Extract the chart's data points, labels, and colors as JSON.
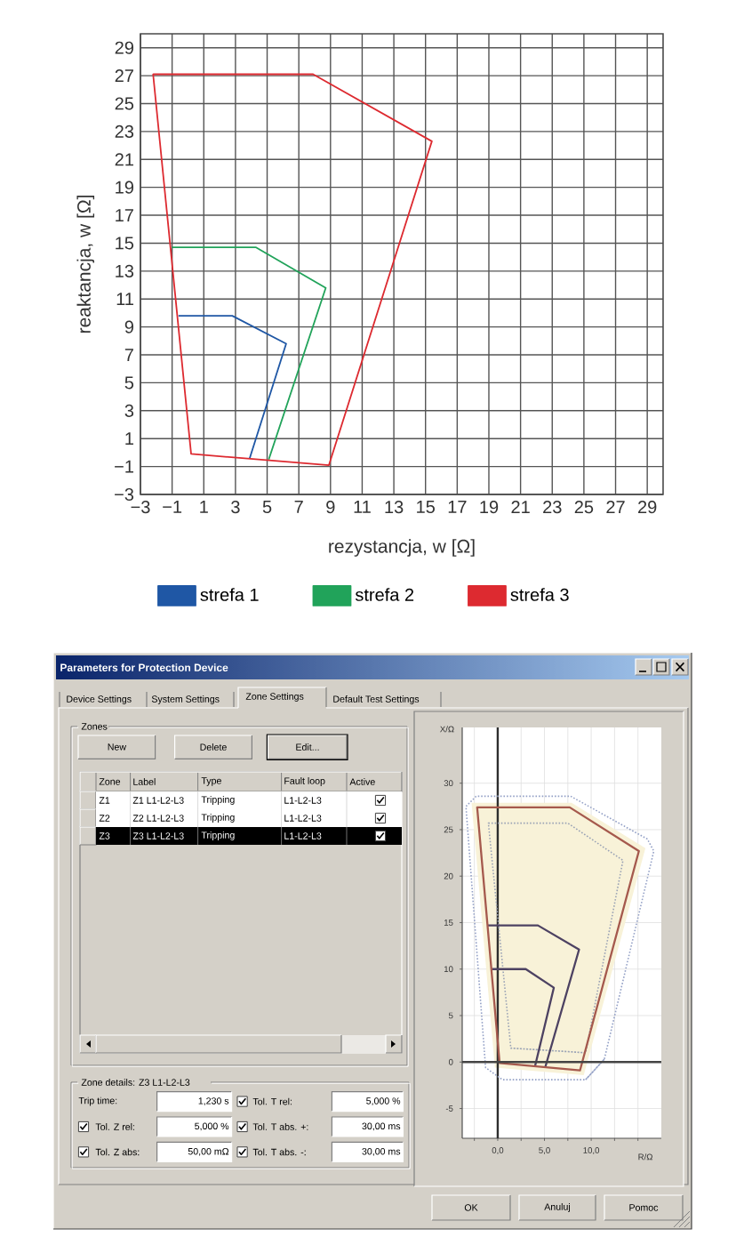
{
  "chart_data": [
    {
      "type": "line",
      "xlabel": "rezystancja, w [Ω]",
      "ylabel": "reaktancja, w [Ω]",
      "xlim": [
        -3,
        30
      ],
      "ylim": [
        -3,
        30
      ],
      "xticks": [
        {
          "value": -3,
          "label": "−3"
        },
        {
          "value": -1,
          "label": "−1"
        },
        1,
        3,
        5,
        7,
        9,
        11,
        13,
        15,
        17,
        19,
        21,
        23,
        25,
        27,
        29
      ],
      "yticks": [
        {
          "value": -3,
          "label": "−3"
        },
        {
          "value": -1,
          "label": "−1"
        },
        1,
        3,
        5,
        7,
        9,
        11,
        13,
        15,
        17,
        19,
        21,
        23,
        25,
        27,
        29
      ],
      "grid": true,
      "legend": "bottom",
      "series": [
        {
          "name": "strefa 1",
          "color": "#1f57a5",
          "x": [
            -0.6,
            2.8,
            6.2,
            3.9
          ],
          "values": [
            9.8,
            9.8,
            7.8,
            -0.4
          ]
        },
        {
          "name": "strefa 2",
          "color": "#21a35a",
          "x": [
            -1.0,
            4.3,
            8.7,
            5.1
          ],
          "values": [
            14.7,
            14.7,
            11.8,
            -0.5
          ]
        },
        {
          "name": "strefa 3",
          "color": "#dd2a30",
          "x": [
            -2.2,
            7.9,
            15.4,
            8.9,
            0.2,
            -2.2,
            7.9
          ],
          "values": [
            27.1,
            27.1,
            22.3,
            -0.9,
            -0.1,
            27.1,
            27.1
          ]
        }
      ]
    },
    {
      "type": "other",
      "title": "Parameters for Protection Device",
      "annotations": [
        "Device Settings",
        "System Settings",
        "Zone Settings",
        "Default Test Settings",
        "Zones",
        "New",
        "Delete",
        "Edit...",
        "Zone",
        "Label",
        "Type",
        "Fault loop",
        "Active",
        "Z1",
        "Z1 L1-L2-L3",
        "Tripping",
        "L1-L2-L3",
        "Z2",
        "Z2 L1-L2-L3",
        "Tripping",
        "L1-L2-L3",
        "Z3",
        "Z3 L1-L2-L3",
        "Tripping",
        "L1-L2-L3",
        "Zone details: Z3 L1-L2-L3",
        "Trip time:",
        "1,230 s",
        "Tol. T rel:",
        "5,000 %",
        "Tol. Z rel:",
        "5,000 %",
        "Tol. T abs. +:",
        "30,00 ms",
        "Tol. Z abs:",
        "50,00 mΩ",
        "Tol. T abs. -:",
        "30,00 ms",
        "OK",
        "Anuluj",
        "Pomoc"
      ]
    },
    {
      "type": "line",
      "xlabel": "R/Ω",
      "ylabel": "X/Ω",
      "xlim": [
        -3.8,
        17.5
      ],
      "ylim": [
        -8.2,
        36
      ],
      "xticks": [
        {
          "value": -2.5,
          "label": null
        },
        {
          "value": 0,
          "label": "0,0"
        },
        {
          "value": 2.5,
          "label": null
        },
        {
          "value": 5,
          "label": "5,0"
        },
        {
          "value": 7.5,
          "label": null
        },
        {
          "value": 10,
          "label": "10,0"
        },
        {
          "value": 12.5,
          "label": null
        },
        {
          "value": 15,
          "label": null
        }
      ],
      "yticks": [
        -5,
        0,
        5,
        10,
        15,
        20,
        25,
        30
      ],
      "grid": true,
      "ref_lines": [
        {
          "axis": "x",
          "value": 0,
          "color": "#2e2e2e"
        },
        {
          "axis": "y",
          "value": 0,
          "color": "#444444"
        }
      ],
      "series": [
        {
          "type": "area",
          "color": "#f8f2d8",
          "x": [
            -2.8,
            7.9,
            15.8,
            9.2,
            -0.3,
            -2.8
          ],
          "values": [
            27.9,
            27.9,
            23.0,
            -1.4,
            -0.6,
            27.9
          ]
        },
        {
          "color": "#93a0c6",
          "line_style": "dotted",
          "x": [
            11.4,
            9.4,
            0.5,
            -1.3,
            -3.4,
            -2.3,
            7.8,
            16.0,
            16.7,
            11.4,
            9.4
          ],
          "values": [
            0.3,
            -1.9,
            -1.9,
            -0.6,
            27.5,
            28.6,
            28.6,
            24.0,
            22.7,
            0.3,
            -1.9
          ]
        },
        {
          "color": "#9aa3b5",
          "line_style": "dotted",
          "x": [
            9.4,
            1.4,
            -1.0,
            7.5,
            13.4,
            9.4,
            1.4
          ],
          "values": [
            1.0,
            1.5,
            25.7,
            25.7,
            21.7,
            1.0,
            1.5
          ]
        },
        {
          "color": "#4d4262",
          "x": [
            -0.6,
            3.0,
            6.0,
            4.0
          ],
          "values": [
            10.0,
            10.0,
            8.0,
            -0.4
          ]
        },
        {
          "color": "#4d4262",
          "x": [
            -1.1,
            4.3,
            8.7,
            5.1
          ],
          "values": [
            14.7,
            14.7,
            12.1,
            -0.5
          ]
        },
        {
          "color": "#a5594d",
          "x": [
            -2.2,
            7.7,
            15.1,
            8.8,
            0.2,
            -2.2,
            7.7
          ],
          "values": [
            27.4,
            27.4,
            22.7,
            -0.9,
            -0.1,
            27.4,
            27.4
          ]
        }
      ]
    }
  ]
}
